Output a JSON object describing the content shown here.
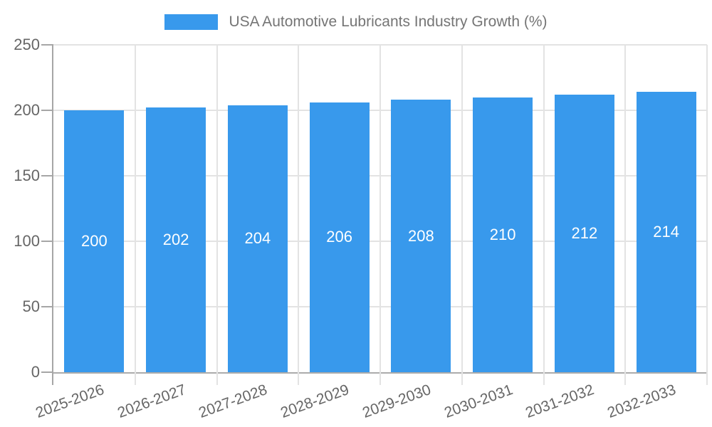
{
  "legend": {
    "label": "USA Automotive Lubricants Industry Growth (%)"
  },
  "chart_data": {
    "type": "bar",
    "title": "USA Automotive Lubricants Industry Growth (%)",
    "categories": [
      "2025-2026",
      "2026-2027",
      "2027-2028",
      "2028-2029",
      "2029-2030",
      "2030-2031",
      "2031-2032",
      "2032-2033"
    ],
    "values": [
      200,
      202,
      204,
      206,
      208,
      210,
      212,
      214
    ],
    "xlabel": "",
    "ylabel": "",
    "ylim": [
      0,
      250
    ],
    "yticks": [
      0,
      50,
      100,
      150,
      200,
      250
    ],
    "grid": true,
    "legend_position": "top",
    "bar_labels_inside": true
  },
  "colors": {
    "bar": "#3899ec",
    "bar_label": "#ffffff",
    "axis_line": "#a6a6a6",
    "gridline": "#e3e3e3",
    "tick_label": "#666666",
    "legend_text": "#757575",
    "background": "#ffffff"
  }
}
